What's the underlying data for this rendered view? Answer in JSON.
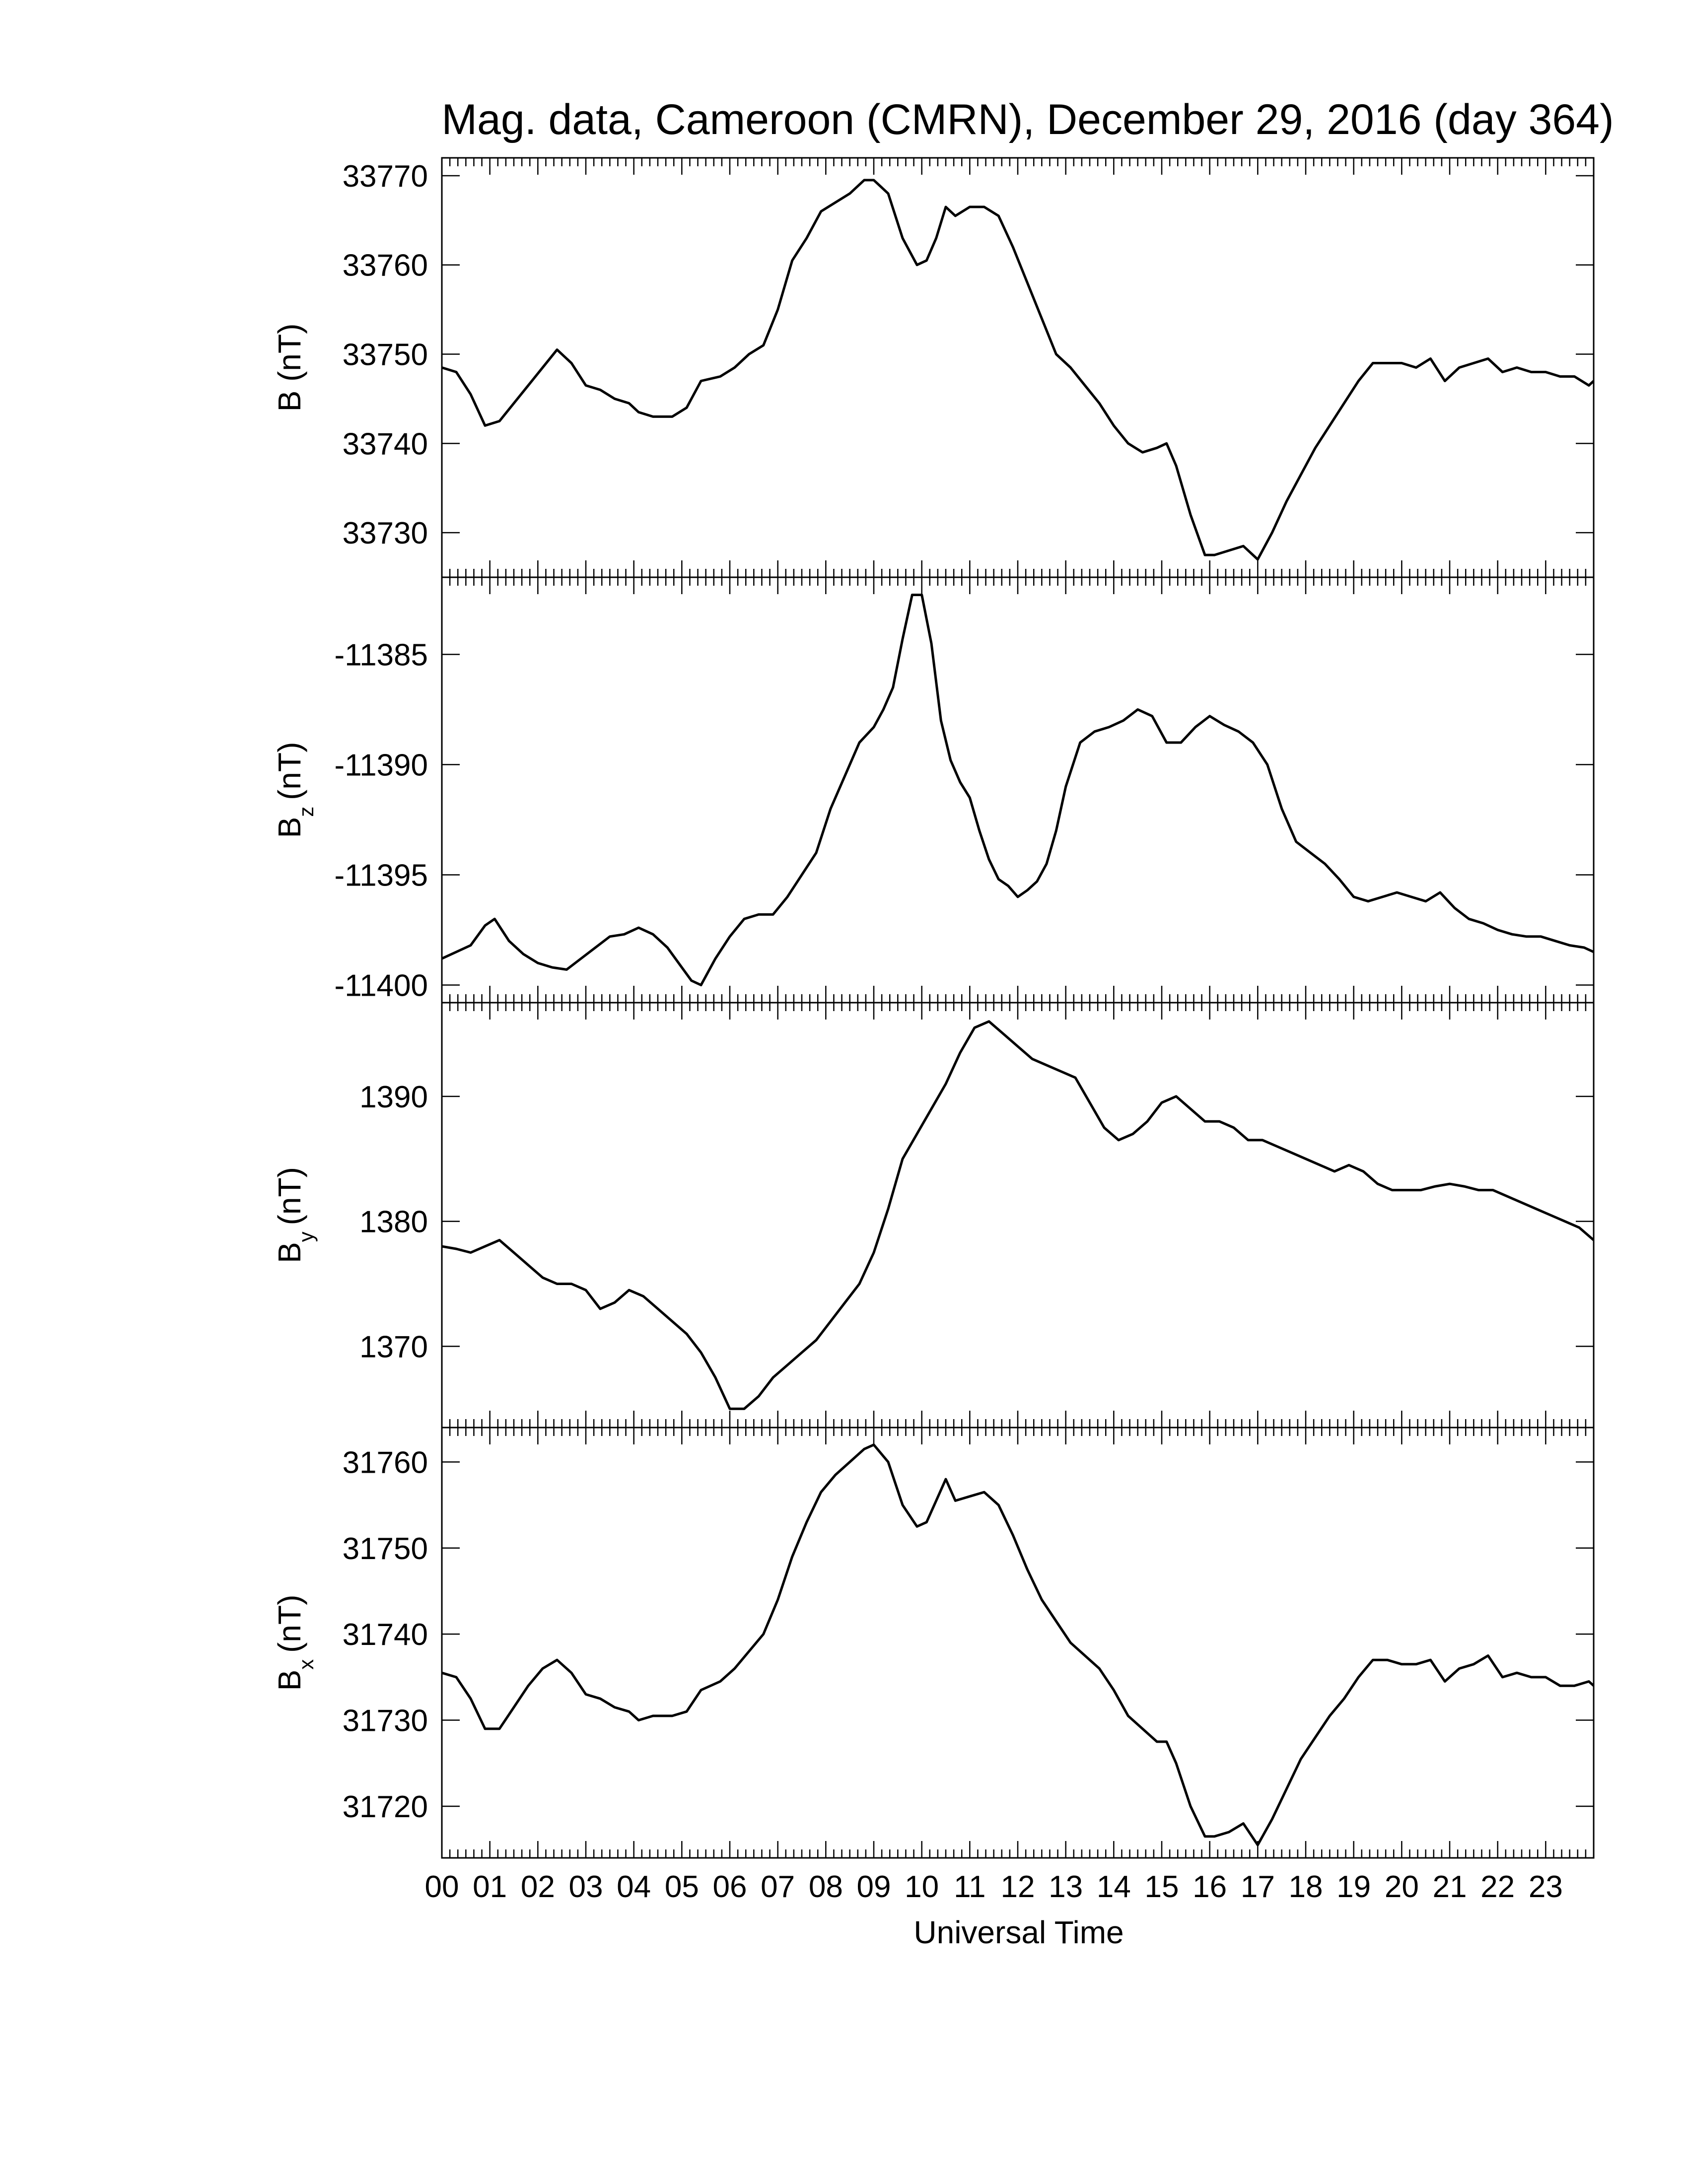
{
  "figure": {
    "title": "Mag. data, Cameroon (CMRN), December 29, 2016 (day 364)",
    "xlabel": "Universal Time",
    "line_color": "#000000",
    "background": "#ffffff"
  },
  "chart_data": [
    {
      "type": "line",
      "panel": "B",
      "ylabel": "B (nT)",
      "ylabel_main": "B",
      "ylabel_sub": "",
      "ylabel_unit": "(nT)",
      "xlim": [
        0,
        24
      ],
      "ylim": [
        33725,
        33772
      ],
      "yticks": [
        33730,
        33740,
        33750,
        33760,
        33770
      ],
      "x": [
        0,
        0.3,
        0.6,
        0.9,
        1.2,
        1.5,
        1.8,
        2.1,
        2.4,
        2.7,
        3.0,
        3.3,
        3.6,
        3.9,
        4.1,
        4.4,
        4.8,
        5.1,
        5.4,
        5.8,
        6.1,
        6.4,
        6.7,
        7.0,
        7.3,
        7.6,
        7.9,
        8.2,
        8.5,
        8.8,
        9.0,
        9.3,
        9.6,
        9.9,
        10.1,
        10.3,
        10.5,
        10.7,
        11.0,
        11.3,
        11.6,
        11.9,
        12.2,
        12.5,
        12.8,
        13.1,
        13.4,
        13.7,
        14.0,
        14.3,
        14.6,
        14.9,
        15.1,
        15.3,
        15.6,
        15.9,
        16.1,
        16.4,
        16.7,
        17.0,
        17.3,
        17.6,
        17.9,
        18.2,
        18.5,
        18.8,
        19.1,
        19.4,
        19.7,
        20.0,
        20.3,
        20.6,
        20.9,
        21.2,
        21.5,
        21.8,
        22.1,
        22.4,
        22.7,
        23.0,
        23.3,
        23.6,
        23.9,
        24.0
      ],
      "values": [
        33748.5,
        33748.0,
        33745.5,
        33742.0,
        33742.5,
        33744.5,
        33746.5,
        33748.5,
        33750.5,
        33749.0,
        33746.5,
        33746.0,
        33745.0,
        33744.5,
        33743.5,
        33743.0,
        33743.0,
        33744.0,
        33747.0,
        33747.5,
        33748.5,
        33750.0,
        33751.0,
        33755.0,
        33760.5,
        33763.0,
        33766.0,
        33767.0,
        33768.0,
        33769.5,
        33769.5,
        33768.0,
        33763.0,
        33760.0,
        33760.5,
        33763.0,
        33766.5,
        33765.5,
        33766.5,
        33766.5,
        33765.5,
        33762.0,
        33758.0,
        33754.0,
        33750.0,
        33748.5,
        33746.5,
        33744.5,
        33742.0,
        33740.0,
        33739.0,
        33739.5,
        33740.0,
        33737.5,
        33732.0,
        33727.5,
        33727.5,
        33728.0,
        33728.5,
        33727.0,
        33730.0,
        33733.5,
        33736.5,
        33739.5,
        33742.0,
        33744.5,
        33747.0,
        33749.0,
        33749.0,
        33749.0,
        33748.5,
        33749.5,
        33747.0,
        33748.5,
        33749.0,
        33749.5,
        33748.0,
        33748.5,
        33748.0,
        33748.0,
        33747.5,
        33747.5,
        33746.5,
        33747.0
      ]
    },
    {
      "type": "line",
      "panel": "Bz",
      "ylabel": "Bz (nT)",
      "ylabel_main": "B",
      "ylabel_sub": "z",
      "ylabel_unit": "(nT)",
      "xlim": [
        0,
        24
      ],
      "ylim": [
        -11400.8,
        -11381.5
      ],
      "yticks": [
        -11385,
        -11390,
        -11395,
        -11400
      ],
      "x": [
        0,
        0.3,
        0.6,
        0.9,
        1.1,
        1.4,
        1.7,
        2.0,
        2.3,
        2.6,
        2.9,
        3.2,
        3.5,
        3.8,
        4.1,
        4.4,
        4.7,
        5.0,
        5.2,
        5.4,
        5.7,
        6.0,
        6.3,
        6.6,
        6.9,
        7.2,
        7.5,
        7.8,
        8.1,
        8.4,
        8.7,
        9.0,
        9.2,
        9.4,
        9.6,
        9.8,
        10.0,
        10.2,
        10.4,
        10.6,
        10.8,
        11.0,
        11.2,
        11.4,
        11.6,
        11.8,
        12.0,
        12.2,
        12.4,
        12.6,
        12.8,
        13.0,
        13.3,
        13.6,
        13.9,
        14.2,
        14.5,
        14.8,
        15.1,
        15.4,
        15.7,
        16.0,
        16.3,
        16.6,
        16.9,
        17.2,
        17.5,
        17.8,
        18.1,
        18.4,
        18.7,
        19.0,
        19.3,
        19.6,
        19.9,
        20.2,
        20.5,
        20.8,
        21.1,
        21.4,
        21.7,
        22.0,
        22.3,
        22.6,
        22.9,
        23.2,
        23.5,
        23.8,
        24.0
      ],
      "values": [
        -11398.8,
        -11398.5,
        -11398.2,
        -11397.3,
        -11397.0,
        -11398.0,
        -11398.6,
        -11399.0,
        -11399.2,
        -11399.3,
        -11398.8,
        -11398.3,
        -11397.8,
        -11397.7,
        -11397.4,
        -11397.7,
        -11398.3,
        -11399.2,
        -11399.8,
        -11400.0,
        -11398.8,
        -11397.8,
        -11397.0,
        -11396.8,
        -11396.8,
        -11396.0,
        -11395.0,
        -11394.0,
        -11392.0,
        -11390.5,
        -11389.0,
        -11388.3,
        -11387.5,
        -11386.5,
        -11384.3,
        -11382.3,
        -11382.3,
        -11384.5,
        -11388.0,
        -11389.8,
        -11390.8,
        -11391.5,
        -11393.0,
        -11394.3,
        -11395.2,
        -11395.5,
        -11396.0,
        -11395.7,
        -11395.3,
        -11394.5,
        -11393.0,
        -11391.0,
        -11389.0,
        -11388.5,
        -11388.3,
        -11388.0,
        -11387.5,
        -11387.8,
        -11389.0,
        -11389.0,
        -11388.3,
        -11387.8,
        -11388.2,
        -11388.5,
        -11389.0,
        -11390.0,
        -11392.0,
        -11393.5,
        -11394.0,
        -11394.5,
        -11395.2,
        -11396.0,
        -11396.2,
        -11396.0,
        -11395.8,
        -11396.0,
        -11396.2,
        -11395.8,
        -11396.5,
        -11397.0,
        -11397.2,
        -11397.5,
        -11397.7,
        -11397.8,
        -11397.8,
        -11398.0,
        -11398.2,
        -11398.3,
        -11398.5
      ]
    },
    {
      "type": "line",
      "panel": "By",
      "ylabel": "By (nT)",
      "ylabel_main": "B",
      "ylabel_sub": "y",
      "ylabel_unit": "(nT)",
      "xlim": [
        0,
        24
      ],
      "ylim": [
        1363.5,
        1397.5
      ],
      "yticks": [
        1370,
        1380,
        1390
      ],
      "x": [
        0,
        0.3,
        0.6,
        0.9,
        1.2,
        1.5,
        1.8,
        2.1,
        2.4,
        2.7,
        3.0,
        3.3,
        3.6,
        3.9,
        4.2,
        4.5,
        4.8,
        5.1,
        5.4,
        5.7,
        6.0,
        6.3,
        6.6,
        6.9,
        7.2,
        7.5,
        7.8,
        8.1,
        8.4,
        8.7,
        9.0,
        9.3,
        9.6,
        9.9,
        10.2,
        10.5,
        10.8,
        11.1,
        11.4,
        11.7,
        12.0,
        12.3,
        12.6,
        12.9,
        13.2,
        13.5,
        13.8,
        14.1,
        14.4,
        14.7,
        15.0,
        15.3,
        15.6,
        15.9,
        16.2,
        16.5,
        16.8,
        17.1,
        17.4,
        17.7,
        18.0,
        18.3,
        18.6,
        18.9,
        19.2,
        19.5,
        19.8,
        20.1,
        20.4,
        20.7,
        21.0,
        21.3,
        21.6,
        21.9,
        22.2,
        22.5,
        22.8,
        23.1,
        23.4,
        23.7,
        24.0
      ],
      "values": [
        1378.0,
        1377.8,
        1377.5,
        1378.0,
        1378.5,
        1377.5,
        1376.5,
        1375.5,
        1375.0,
        1375.0,
        1374.5,
        1373.0,
        1373.5,
        1374.5,
        1374.0,
        1373.0,
        1372.0,
        1371.0,
        1369.5,
        1367.5,
        1365.0,
        1365.0,
        1366.0,
        1367.5,
        1368.5,
        1369.5,
        1370.5,
        1372.0,
        1373.5,
        1375.0,
        1377.5,
        1381.0,
        1385.0,
        1387.0,
        1389.0,
        1391.0,
        1393.5,
        1395.5,
        1396.0,
        1395.0,
        1394.0,
        1393.0,
        1392.5,
        1392.0,
        1391.5,
        1389.5,
        1387.5,
        1386.5,
        1387.0,
        1388.0,
        1389.5,
        1390.0,
        1389.0,
        1388.0,
        1388.0,
        1387.5,
        1386.5,
        1386.5,
        1386.0,
        1385.5,
        1385.0,
        1384.5,
        1384.0,
        1384.5,
        1384.0,
        1383.0,
        1382.5,
        1382.5,
        1382.5,
        1382.8,
        1383.0,
        1382.8,
        1382.5,
        1382.5,
        1382.0,
        1381.5,
        1381.0,
        1380.5,
        1380.0,
        1379.5,
        1378.5
      ]
    },
    {
      "type": "line",
      "panel": "Bx",
      "ylabel": "Bx (nT)",
      "ylabel_main": "B",
      "ylabel_sub": "x",
      "ylabel_unit": "(nT)",
      "xlim": [
        0,
        24
      ],
      "ylim": [
        31714,
        31764
      ],
      "yticks": [
        31720,
        31730,
        31740,
        31750,
        31760
      ],
      "x": [
        0,
        0.3,
        0.6,
        0.9,
        1.2,
        1.5,
        1.8,
        2.1,
        2.4,
        2.7,
        3.0,
        3.3,
        3.6,
        3.9,
        4.1,
        4.4,
        4.8,
        5.1,
        5.4,
        5.8,
        6.1,
        6.4,
        6.7,
        7.0,
        7.3,
        7.6,
        7.9,
        8.2,
        8.5,
        8.8,
        9.0,
        9.3,
        9.6,
        9.9,
        10.1,
        10.3,
        10.5,
        10.7,
        11.0,
        11.3,
        11.6,
        11.9,
        12.2,
        12.5,
        12.8,
        13.1,
        13.4,
        13.7,
        14.0,
        14.3,
        14.6,
        14.9,
        15.1,
        15.3,
        15.6,
        15.9,
        16.1,
        16.4,
        16.7,
        17.0,
        17.3,
        17.6,
        17.9,
        18.2,
        18.5,
        18.8,
        19.1,
        19.4,
        19.7,
        20.0,
        20.3,
        20.6,
        20.9,
        21.2,
        21.5,
        21.8,
        22.1,
        22.4,
        22.7,
        23.0,
        23.3,
        23.6,
        23.9,
        24.0
      ],
      "values": [
        31735.5,
        31735.0,
        31732.5,
        31729.0,
        31729.0,
        31731.5,
        31734.0,
        31736.0,
        31737.0,
        31735.5,
        31733.0,
        31732.5,
        31731.5,
        31731.0,
        31730.0,
        31730.5,
        31730.5,
        31731.0,
        31733.5,
        31734.5,
        31736.0,
        31738.0,
        31740.0,
        31744.0,
        31749.0,
        31753.0,
        31756.5,
        31758.5,
        31760.0,
        31761.5,
        31762.0,
        31760.0,
        31755.0,
        31752.5,
        31753.0,
        31755.5,
        31758.0,
        31755.5,
        31756.0,
        31756.5,
        31755.0,
        31751.5,
        31747.5,
        31744.0,
        31741.5,
        31739.0,
        31737.5,
        31736.0,
        31733.5,
        31730.5,
        31729.0,
        31727.5,
        31727.5,
        31725.0,
        31720.0,
        31716.5,
        31716.5,
        31717.0,
        31718.0,
        31715.5,
        31718.5,
        31722.0,
        31725.5,
        31728.0,
        31730.5,
        31732.5,
        31735.0,
        31737.0,
        31737.0,
        31736.5,
        31736.5,
        31737.0,
        31734.5,
        31736.0,
        31736.5,
        31737.5,
        31735.0,
        31735.5,
        31735.0,
        31735.0,
        31734.0,
        31734.0,
        31734.5,
        31734.0
      ]
    }
  ],
  "x_axis": {
    "tick_labels": [
      "00",
      "01",
      "02",
      "03",
      "04",
      "05",
      "06",
      "07",
      "08",
      "09",
      "10",
      "11",
      "12",
      "13",
      "14",
      "15",
      "16",
      "17",
      "18",
      "19",
      "20",
      "21",
      "22",
      "23"
    ]
  }
}
